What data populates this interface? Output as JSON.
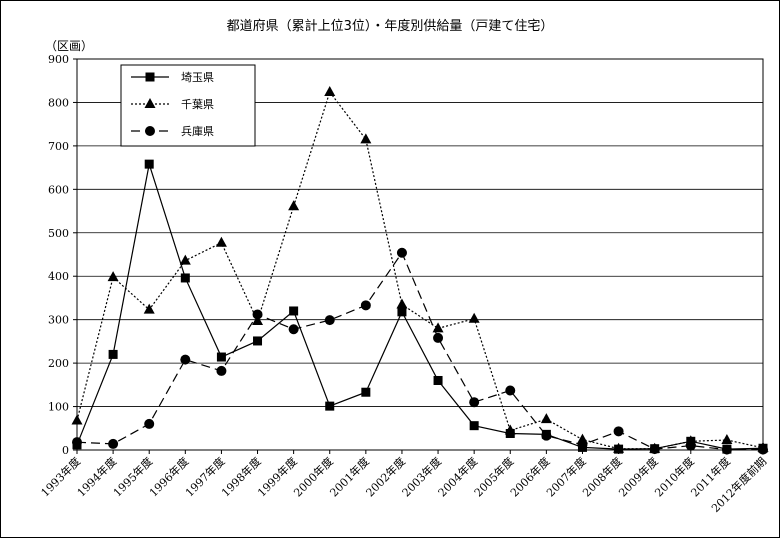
{
  "chart_data": {
    "type": "line",
    "title": "都道府県（累計上位3位）・年度別供給量（戸建て住宅）",
    "y_unit_label": "（区画）",
    "ylim": [
      0,
      900
    ],
    "yticks": [
      0,
      100,
      200,
      300,
      400,
      500,
      600,
      700,
      800,
      900
    ],
    "grid": "horizontal",
    "legend_position": "top-left",
    "categories": [
      "1993年度",
      "1994年度",
      "1995年度",
      "1996年度",
      "1997年度",
      "1998年度",
      "1999年度",
      "2000年度",
      "2001年度",
      "2002年度",
      "2003年度",
      "2004年度",
      "2005年度",
      "2006年度",
      "2007年度",
      "2008年度",
      "2009年度",
      "2010年度",
      "2011年度",
      "2012年度前期"
    ],
    "series": [
      {
        "name": "埼玉県",
        "marker": "square",
        "dash": "solid",
        "values": [
          12,
          220,
          658,
          396,
          214,
          251,
          320,
          101,
          133,
          318,
          160,
          56,
          38,
          36,
          6,
          2,
          3,
          20,
          2,
          4
        ]
      },
      {
        "name": "千葉県",
        "marker": "triangle",
        "dash": "dotted",
        "values": [
          68,
          398,
          323,
          436,
          477,
          297,
          561,
          824,
          715,
          335,
          280,
          302,
          45,
          71,
          24,
          3,
          3,
          20,
          23,
          5
        ]
      },
      {
        "name": "兵庫県",
        "marker": "circle",
        "dash": "dashed",
        "values": [
          18,
          14,
          60,
          208,
          182,
          312,
          278,
          299,
          333,
          454,
          258,
          110,
          137,
          33,
          12,
          43,
          2,
          10,
          1,
          1
        ]
      }
    ]
  }
}
